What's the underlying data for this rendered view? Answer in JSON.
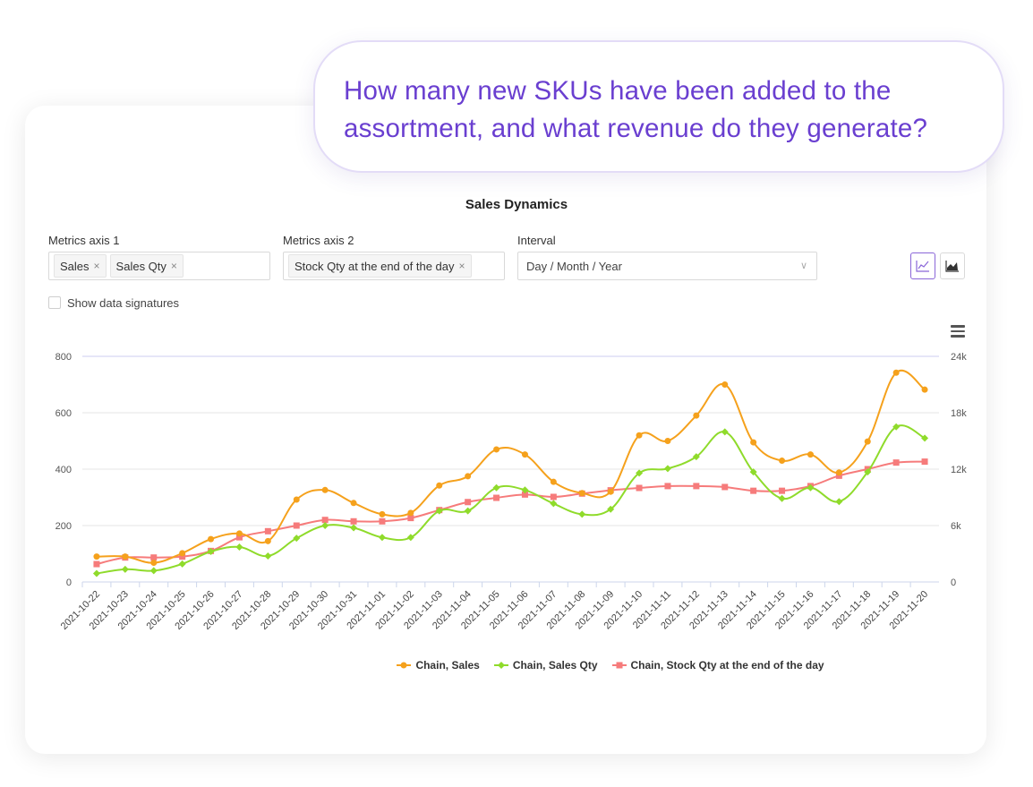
{
  "question": {
    "line1": "How many new SKUs have been added to the",
    "line2": "assortment, and what revenue do they generate?"
  },
  "panel": {
    "title": "Sales Dynamics",
    "metrics_axis_1": {
      "label": "Metrics axis 1",
      "tags": [
        "Sales",
        "Sales Qty"
      ]
    },
    "metrics_axis_2": {
      "label": "Metrics axis 2",
      "tags": [
        "Stock Qty at the end of the day"
      ]
    },
    "interval": {
      "label": "Interval",
      "value": "Day / Month / Year"
    },
    "show_signatures": {
      "label": "Show data signatures",
      "checked": false
    },
    "icons": [
      "line-chart-icon",
      "area-chart-icon",
      "menu-icon"
    ]
  },
  "colors": {
    "sales": "#f5a11c",
    "sales_qty": "#8fdb2b",
    "stock": "#f67b7b",
    "accent": "#6a3fd0"
  },
  "chart_data": {
    "type": "line",
    "title": "",
    "x": [
      "2021-10-22",
      "2021-10-23",
      "2021-10-24",
      "2021-10-25",
      "2021-10-26",
      "2021-10-27",
      "2021-10-28",
      "2021-10-29",
      "2021-10-30",
      "2021-10-31",
      "2021-11-01",
      "2021-11-02",
      "2021-11-03",
      "2021-11-04",
      "2021-11-05",
      "2021-11-06",
      "2021-11-07",
      "2021-11-08",
      "2021-11-09",
      "2021-11-10",
      "2021-11-11",
      "2021-11-12",
      "2021-11-13",
      "2021-11-14",
      "2021-11-15",
      "2021-11-16",
      "2021-11-17",
      "2021-11-18",
      "2021-11-19",
      "2021-11-20"
    ],
    "y_left": {
      "ticks": [
        "0",
        "200",
        "400",
        "600",
        "800"
      ],
      "range": [
        0,
        800
      ]
    },
    "y_right": {
      "ticks": [
        "0",
        "6k",
        "12k",
        "18k",
        "24k"
      ],
      "range": [
        0,
        24000
      ]
    },
    "grid": true,
    "legend_position": "bottom",
    "series": [
      {
        "name": "Chain, Sales",
        "axis": "left",
        "marker": "circle",
        "color": "#f5a11c",
        "values": [
          90,
          90,
          68,
          102,
          152,
          172,
          145,
          292,
          326,
          280,
          240,
          245,
          342,
          375,
          470,
          452,
          355,
          315,
          320,
          520,
          500,
          590,
          700,
          495,
          430,
          452,
          388,
          498,
          742,
          682
        ]
      },
      {
        "name": "Chain, Sales Qty",
        "axis": "left",
        "marker": "diamond",
        "color": "#8fdb2b",
        "values": [
          30,
          45,
          40,
          64,
          108,
          124,
          92,
          155,
          200,
          192,
          158,
          158,
          252,
          252,
          334,
          326,
          278,
          240,
          258,
          386,
          402,
          444,
          532,
          390,
          296,
          334,
          285,
          390,
          550,
          510
        ]
      },
      {
        "name": "Chain, Stock Qty at the end of the day",
        "axis": "right",
        "marker": "square",
        "color": "#f67b7b",
        "values": [
          1900,
          2600,
          2600,
          2700,
          3300,
          4750,
          5400,
          6000,
          6600,
          6450,
          6450,
          6800,
          7650,
          8500,
          8950,
          9300,
          9050,
          9400,
          9750,
          10000,
          10200,
          10200,
          10100,
          9700,
          9700,
          10200,
          11300,
          12000,
          12700,
          12800
        ]
      }
    ]
  }
}
